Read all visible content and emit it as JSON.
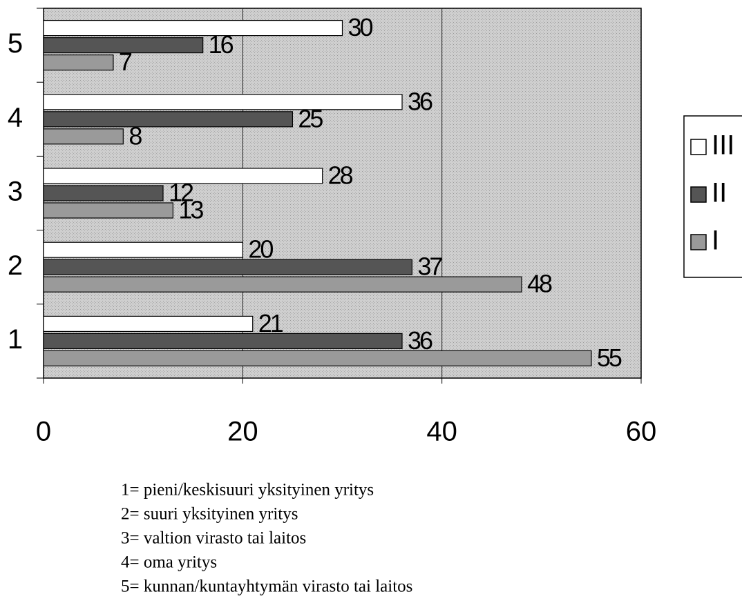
{
  "chart_data": {
    "type": "bar",
    "orientation": "horizontal",
    "categories": [
      "1",
      "2",
      "3",
      "4",
      "5"
    ],
    "series": [
      {
        "name": "III",
        "color": "#ffffff",
        "values": [
          21,
          20,
          28,
          36,
          30
        ]
      },
      {
        "name": "II",
        "color": "#555555",
        "values": [
          36,
          37,
          12,
          25,
          16
        ]
      },
      {
        "name": "I",
        "color": "#9a9a9a",
        "values": [
          55,
          48,
          13,
          8,
          7
        ]
      }
    ],
    "xlim": [
      0,
      60
    ],
    "xticks": [
      0,
      20,
      40,
      60
    ],
    "grid": true,
    "legend": "right",
    "notes": [
      "1= pieni/keskisuuri yksityinen yritys",
      "2= suuri yksityinen yritys",
      "3= valtion virasto tai laitos",
      "4= oma yritys",
      "5= kunnan/kuntayhtymän virasto tai laitos"
    ]
  }
}
